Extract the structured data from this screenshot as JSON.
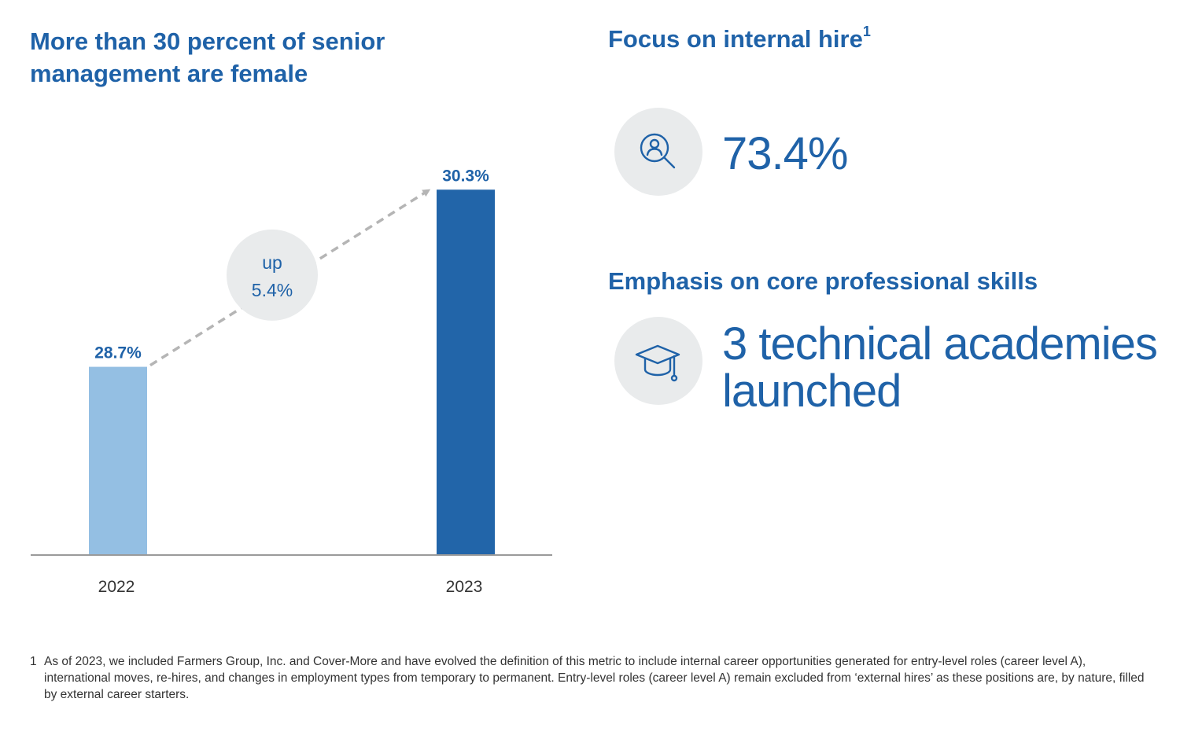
{
  "left_panel": {
    "title": "More than 30 percent of senior management are female"
  },
  "chart_data": {
    "type": "bar",
    "categories": [
      "2022",
      "2023"
    ],
    "values": [
      28.7,
      30.3
    ],
    "value_labels": [
      "28.7%",
      "30.3%"
    ],
    "colors": [
      "#94bfe3",
      "#2265a9"
    ],
    "title": "More than 30 percent of senior management are female",
    "xlabel": "",
    "ylabel": "",
    "ylim": [
      27.0,
      30.6
    ],
    "grid": false,
    "annotation": {
      "line1": "up",
      "line2": "5.4%"
    }
  },
  "internal_hire": {
    "heading": "Focus on internal hire",
    "footnote_ref": "1",
    "value": "73.4%",
    "icon": "person-search-icon"
  },
  "skills": {
    "heading": "Emphasis on core professional skills",
    "value_line1": "3 technical academies",
    "value_line2": "launched",
    "icon": "graduation-cap-icon"
  },
  "footnote": {
    "marker": "1",
    "text": "As of 2023, we included Farmers Group, Inc. and Cover-More and have evolved the definition of this metric to include internal career opportunities generated for entry-level roles (career level A), international moves, re-hires, and changes in employment types from temporary to permanent. Entry-level roles (career level A) remain excluded from ‘external hires’ as these positions are, by nature, filled by external career starters."
  },
  "colors": {
    "accent": "#1f62a8",
    "bar_light": "#94bfe3",
    "bar_dark": "#2265a9",
    "circle_bg": "#e9ebec",
    "arrow": "#b5b5b5",
    "axis": "#9a9a9a"
  }
}
